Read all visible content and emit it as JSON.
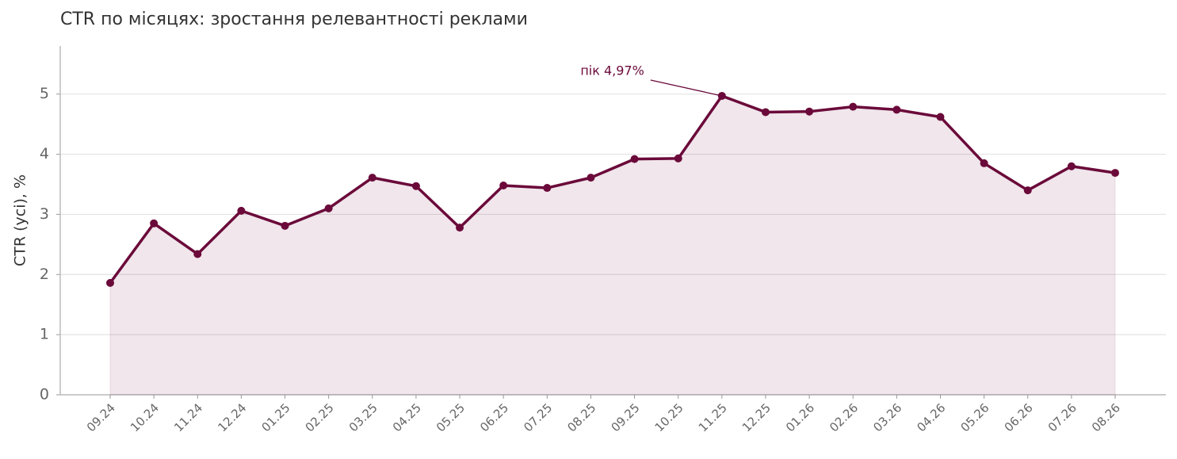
{
  "chart_data": {
    "type": "line",
    "title": "CTR по місяцях: зростання релевантності реклами",
    "y_label": "CTR (усі), %",
    "categories": [
      "09.24",
      "10.24",
      "11.24",
      "12.24",
      "01.25",
      "02.25",
      "03.25",
      "04.25",
      "05.25",
      "06.25",
      "07.25",
      "08.25",
      "09.25",
      "10.25",
      "11.25",
      "12.25",
      "01.26",
      "02.26",
      "03.26",
      "04.26",
      "05.26",
      "06.26",
      "07.26",
      "08.26"
    ],
    "values": [
      1.86,
      2.85,
      2.34,
      3.06,
      2.81,
      3.1,
      3.61,
      3.47,
      2.78,
      3.48,
      3.44,
      3.61,
      3.92,
      3.93,
      4.97,
      4.7,
      4.71,
      4.79,
      4.74,
      4.62,
      3.85,
      3.4,
      3.8,
      3.69
    ],
    "color": "#6b0a3a",
    "ylim": [
      0,
      5.8
    ],
    "yticks": [
      0,
      1,
      2,
      3,
      4,
      5
    ],
    "grid": true,
    "annotation": "пік 4,97%"
  }
}
